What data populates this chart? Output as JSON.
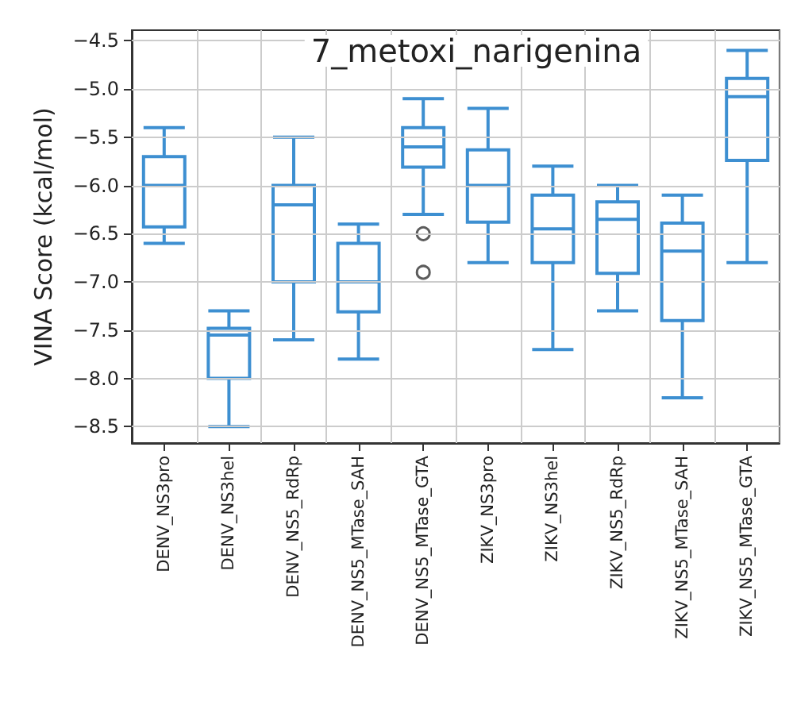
{
  "chart_data": {
    "type": "box",
    "title": "7_metoxi_narigenina",
    "ylabel": "VINA Score (kcal/mol)",
    "categories": [
      "DENV_NS3pro",
      "DENV_NS3hel",
      "DENV_NS5_RdRp",
      "DENV_NS5_MTase_SAH",
      "DENV_NS5_MTase_GTA",
      "ZIKV_NS3pro",
      "ZIKV_NS3hel",
      "ZIKV_NS5_RdRp",
      "ZIKV_NS5_MTase_SAH",
      "ZIKV_NS5_MTase_GTA"
    ],
    "series": [
      {
        "color": "#3d8fd1",
        "boxes": [
          {
            "low": -6.6,
            "q1": -6.43,
            "median": -6.0,
            "q3": -5.7,
            "high": -5.4
          },
          {
            "low": -8.5,
            "q1": -8.0,
            "median": -7.55,
            "q3": -7.48,
            "high": -7.3
          },
          {
            "low": -7.6,
            "q1": -7.0,
            "median": -6.2,
            "q3": -6.0,
            "high": -5.5
          },
          {
            "low": -7.8,
            "q1": -7.31,
            "median": -7.0,
            "q3": -6.6,
            "high": -6.4
          },
          {
            "low": -6.3,
            "q1": -5.81,
            "median": -5.6,
            "q3": -5.4,
            "high": -5.1,
            "outliers": [
              -6.5,
              -6.9
            ]
          },
          {
            "low": -6.8,
            "q1": -6.38,
            "median": -6.0,
            "q3": -5.63,
            "high": -5.2
          },
          {
            "low": -7.7,
            "q1": -6.8,
            "median": -6.45,
            "q3": -6.1,
            "high": -5.8
          },
          {
            "low": -7.3,
            "q1": -6.91,
            "median": -6.35,
            "q3": -6.17,
            "high": -6.0
          },
          {
            "low": -8.2,
            "q1": -7.4,
            "median": -6.68,
            "q3": -6.39,
            "high": -6.1
          },
          {
            "low": -6.8,
            "q1": -5.74,
            "median": -5.08,
            "q3": -4.89,
            "high": -4.6
          }
        ]
      }
    ],
    "ylim": [
      -8.67,
      -4.39
    ],
    "yticks": [
      {
        "value": -8.5,
        "label": "−8.5"
      },
      {
        "value": -8.0,
        "label": "−8.0"
      },
      {
        "value": -7.5,
        "label": "−7.5"
      },
      {
        "value": -7.0,
        "label": "−7.0"
      },
      {
        "value": -6.5,
        "label": "−6.5"
      },
      {
        "value": -6.0,
        "label": "−6.0"
      },
      {
        "value": -5.5,
        "label": "−5.5"
      },
      {
        "value": -5.0,
        "label": "−5.0"
      },
      {
        "value": -4.5,
        "label": "−4.5"
      }
    ],
    "grid": true
  }
}
